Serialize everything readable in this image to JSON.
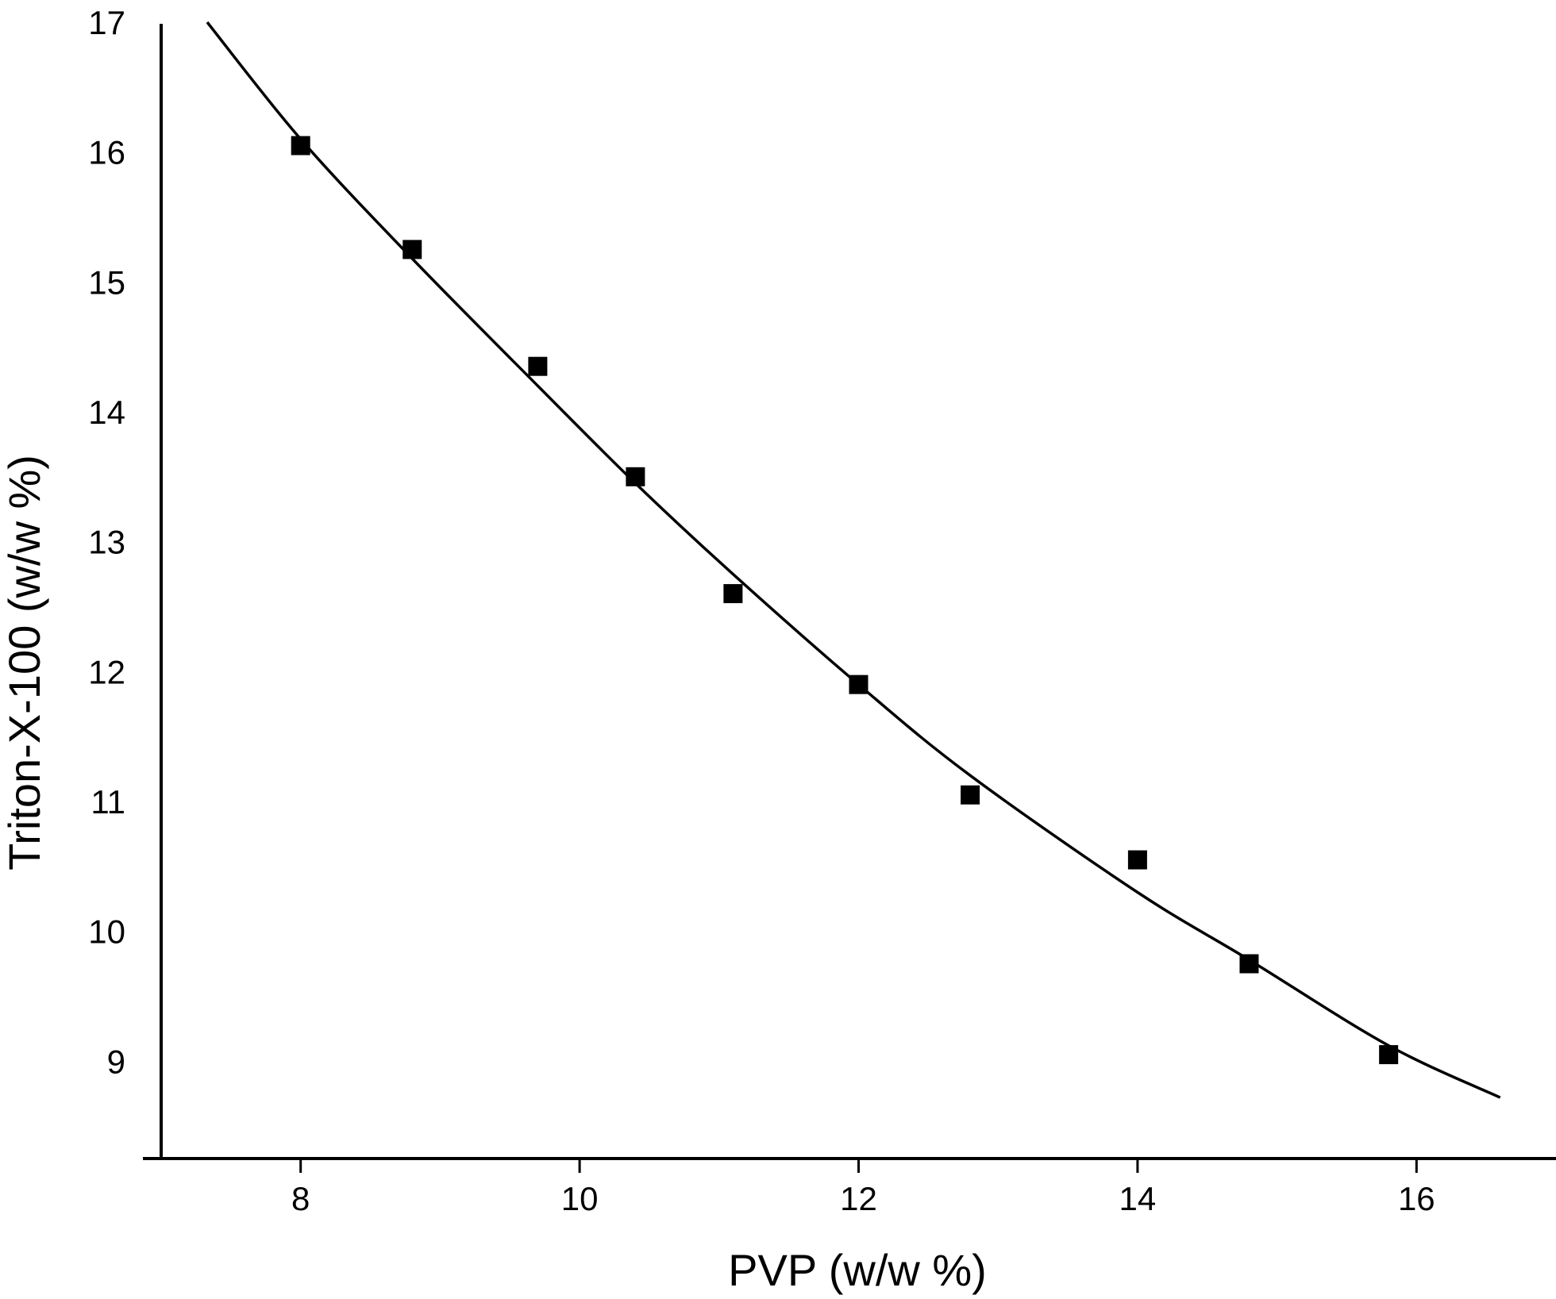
{
  "chart_data": {
    "type": "scatter",
    "title": "",
    "xlabel": "PVP (w/w %)",
    "ylabel": "Triton-X-100 (w/w %)",
    "xlim": [
      7,
      17
    ],
    "ylim": [
      8.25,
      17
    ],
    "xticks": [
      8,
      10,
      12,
      14,
      16
    ],
    "yticks": [
      9,
      10,
      11,
      12,
      13,
      14,
      15,
      16,
      17
    ],
    "grid": false,
    "legend": "none",
    "series": [
      {
        "type": "scatter",
        "marker": "square",
        "color": "#000000",
        "points": [
          {
            "x": 8.0,
            "y": 16.05
          },
          {
            "x": 8.8,
            "y": 15.25
          },
          {
            "x": 9.7,
            "y": 14.35
          },
          {
            "x": 10.4,
            "y": 13.5
          },
          {
            "x": 11.1,
            "y": 12.6
          },
          {
            "x": 12.0,
            "y": 11.9
          },
          {
            "x": 12.8,
            "y": 11.05
          },
          {
            "x": 14.0,
            "y": 10.55
          },
          {
            "x": 14.8,
            "y": 9.75
          },
          {
            "x": 15.8,
            "y": 9.05
          }
        ]
      },
      {
        "type": "line",
        "color": "#000000",
        "points": [
          {
            "x": 7.33,
            "y": 17.0
          },
          {
            "x": 8.0,
            "y": 16.1
          },
          {
            "x": 8.8,
            "y": 15.18
          },
          {
            "x": 9.7,
            "y": 14.2
          },
          {
            "x": 10.4,
            "y": 13.45
          },
          {
            "x": 11.1,
            "y": 12.75
          },
          {
            "x": 12.0,
            "y": 11.9
          },
          {
            "x": 12.8,
            "y": 11.2
          },
          {
            "x": 14.0,
            "y": 10.3
          },
          {
            "x": 14.8,
            "y": 9.78
          },
          {
            "x": 15.8,
            "y": 9.12
          },
          {
            "x": 16.6,
            "y": 8.72
          }
        ]
      }
    ]
  }
}
